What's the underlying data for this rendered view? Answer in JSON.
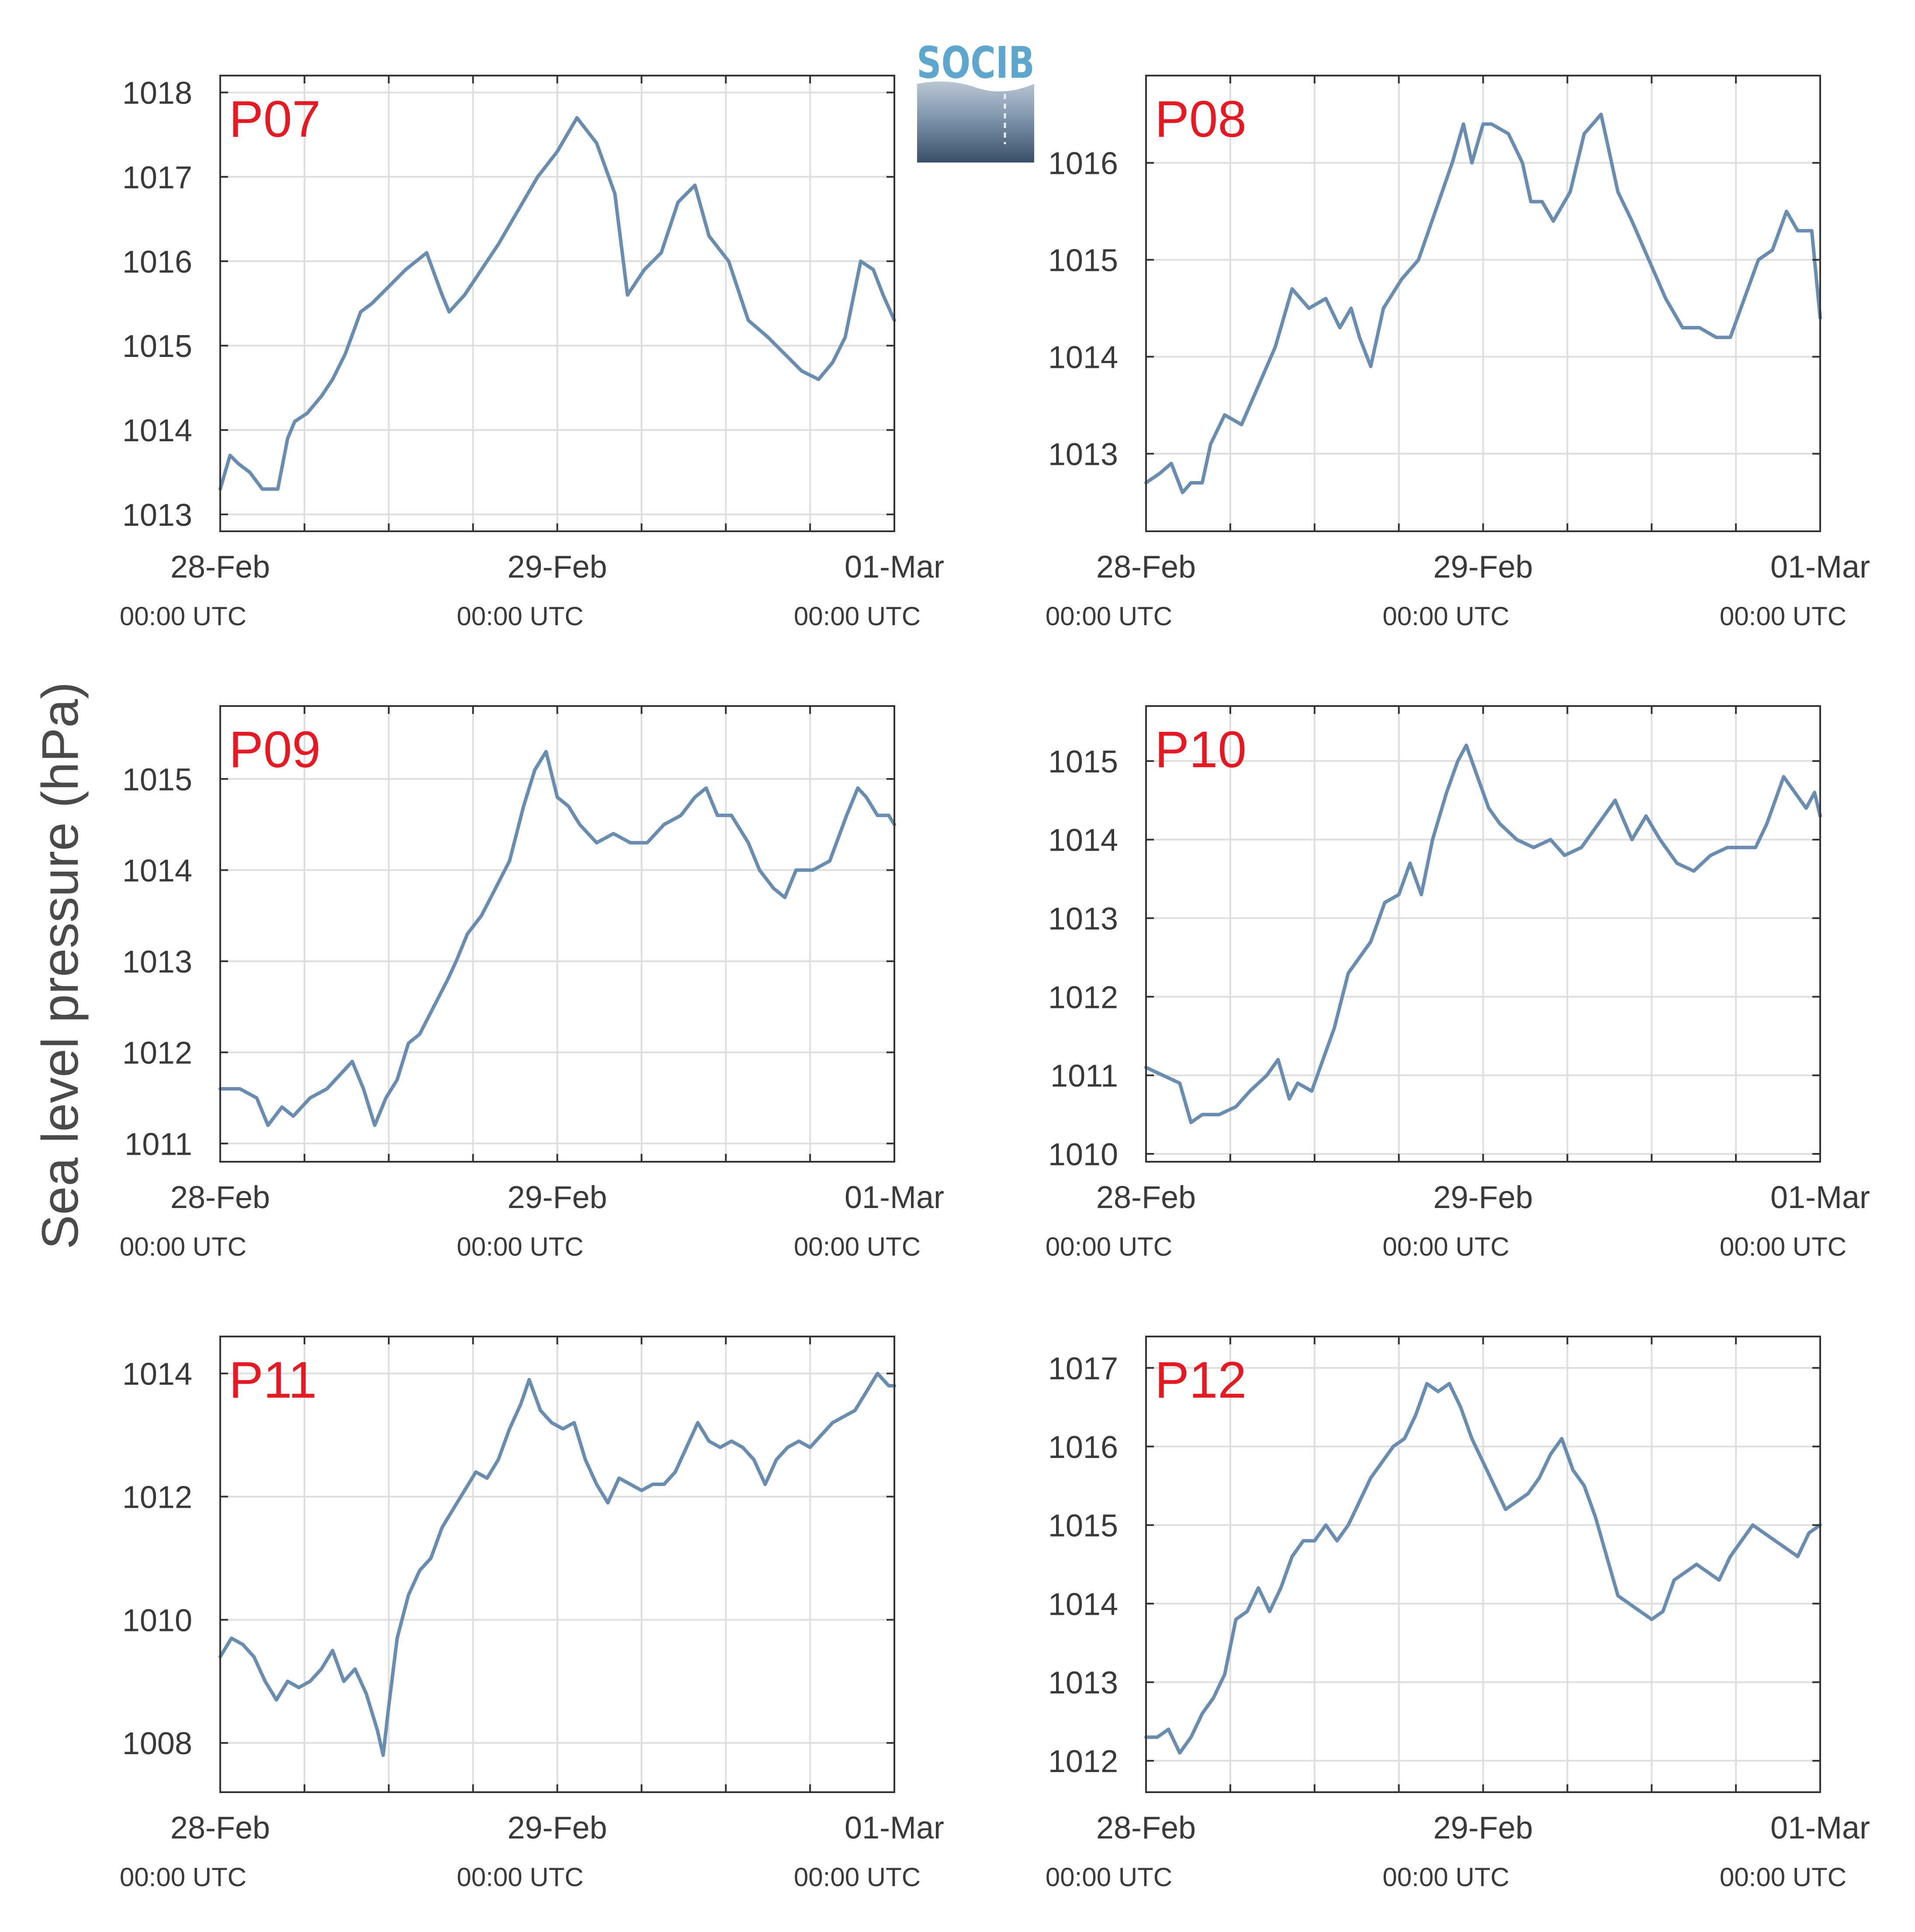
{
  "figure": {
    "ylabel": "Sea level pressure (hPa)",
    "logo_text": "SOCIB",
    "line_color": "#6a8caf",
    "label_color": "#e31a24"
  },
  "chart_data": [
    {
      "type": "line",
      "title": "P07",
      "xticks": [
        {
          "date": "28-Feb",
          "time": "00:00 UTC"
        },
        {
          "date": "29-Feb",
          "time": "00:00 UTC"
        },
        {
          "date": "01-Mar",
          "time": "00:00 UTC"
        }
      ],
      "xlim_hours": [
        0,
        48
      ],
      "ylim": [
        1012.8,
        1018.2
      ],
      "yticks": [
        1013,
        1014,
        1015,
        1016,
        1017,
        1018
      ],
      "grid": true,
      "series": [
        {
          "x_hours": [
            0,
            0.7,
            1.3,
            2.1,
            3.0,
            4.1,
            4.8,
            5.3,
            6.2,
            7.2,
            8.0,
            8.9,
            10.0,
            10.8,
            12.0,
            13.2,
            14.7,
            15.8,
            16.3,
            17.4,
            18.6,
            19.8,
            21.2,
            22.6,
            24.0,
            25.4,
            26.8,
            28.1,
            29.0,
            30.2,
            31.4,
            32.6,
            33.8,
            34.8,
            36.2,
            37.6,
            39.0,
            40.2,
            41.4,
            42.6,
            43.6,
            44.5,
            45.6,
            46.5,
            47.2,
            48
          ],
          "values": [
            1013.3,
            1013.7,
            1013.6,
            1013.5,
            1013.3,
            1013.3,
            1013.9,
            1014.1,
            1014.2,
            1014.4,
            1014.6,
            1014.9,
            1015.4,
            1015.5,
            1015.7,
            1015.9,
            1016.1,
            1015.6,
            1015.4,
            1015.6,
            1015.9,
            1016.2,
            1016.6,
            1017.0,
            1017.3,
            1017.7,
            1017.4,
            1016.8,
            1015.6,
            1015.9,
            1016.1,
            1016.7,
            1016.9,
            1016.3,
            1016.0,
            1015.3,
            1015.1,
            1014.9,
            1014.7,
            1014.6,
            1014.8,
            1015.1,
            1016.0,
            1015.9,
            1015.6,
            1015.3
          ]
        }
      ]
    },
    {
      "type": "line",
      "title": "P08",
      "xticks": [
        {
          "date": "28-Feb",
          "time": "00:00 UTC"
        },
        {
          "date": "29-Feb",
          "time": "00:00 UTC"
        },
        {
          "date": "01-Mar",
          "time": "00:00 UTC"
        }
      ],
      "xlim_hours": [
        0,
        48
      ],
      "ylim": [
        1012.2,
        1016.9
      ],
      "yticks": [
        1013,
        1014,
        1015,
        1016
      ],
      "grid": true,
      "series": [
        {
          "x_hours": [
            0,
            1.0,
            1.8,
            2.6,
            3.2,
            4.0,
            4.6,
            5.6,
            6.8,
            8.0,
            9.2,
            10.4,
            11.6,
            12.8,
            13.8,
            14.6,
            15.2,
            16.0,
            16.9,
            18.2,
            19.4,
            20.6,
            21.8,
            22.6,
            23.2,
            24.0,
            24.6,
            25.8,
            26.8,
            27.4,
            28.2,
            29.0,
            30.2,
            31.2,
            32.4,
            33.6,
            34.6,
            35.8,
            37.0,
            38.2,
            39.4,
            40.6,
            41.6,
            42.6,
            43.6,
            44.6,
            45.6,
            46.4,
            47.4,
            48
          ],
          "values": [
            1012.7,
            1012.8,
            1012.9,
            1012.6,
            1012.7,
            1012.7,
            1013.1,
            1013.4,
            1013.3,
            1013.7,
            1014.1,
            1014.7,
            1014.5,
            1014.6,
            1014.3,
            1014.5,
            1014.2,
            1013.9,
            1014.5,
            1014.8,
            1015.0,
            1015.5,
            1016.0,
            1016.4,
            1016.0,
            1016.4,
            1016.4,
            1016.3,
            1016.0,
            1015.6,
            1015.6,
            1015.4,
            1015.7,
            1016.3,
            1016.5,
            1015.7,
            1015.4,
            1015.0,
            1014.6,
            1014.3,
            1014.3,
            1014.2,
            1014.2,
            1014.6,
            1015.0,
            1015.1,
            1015.5,
            1015.3,
            1015.3,
            1014.4
          ]
        }
      ]
    },
    {
      "type": "line",
      "title": "P09",
      "xticks": [
        {
          "date": "28-Feb",
          "time": "00:00 UTC"
        },
        {
          "date": "29-Feb",
          "time": "00:00 UTC"
        },
        {
          "date": "01-Mar",
          "time": "00:00 UTC"
        }
      ],
      "xlim_hours": [
        0,
        48
      ],
      "ylim": [
        1010.8,
        1015.8
      ],
      "yticks": [
        1011,
        1012,
        1013,
        1014,
        1015
      ],
      "grid": true,
      "series": [
        {
          "x_hours": [
            0,
            1.4,
            2.6,
            3.4,
            4.4,
            5.2,
            6.4,
            7.6,
            8.8,
            9.4,
            10.2,
            11.0,
            11.8,
            12.6,
            13.4,
            14.2,
            15.2,
            16.2,
            16.8,
            17.6,
            18.6,
            19.6,
            20.6,
            21.6,
            22.4,
            23.2,
            24.0,
            24.8,
            25.6,
            26.8,
            28.0,
            29.2,
            30.4,
            31.6,
            32.8,
            33.8,
            34.6,
            35.4,
            36.4,
            37.6,
            38.4,
            39.4,
            40.2,
            41.0,
            42.2,
            43.4,
            44.6,
            45.4,
            46.0,
            46.8,
            47.6,
            48
          ],
          "values": [
            1011.6,
            1011.6,
            1011.5,
            1011.2,
            1011.4,
            1011.3,
            1011.5,
            1011.6,
            1011.8,
            1011.9,
            1011.6,
            1011.2,
            1011.5,
            1011.7,
            1012.1,
            1012.2,
            1012.5,
            1012.8,
            1013.0,
            1013.3,
            1013.5,
            1013.8,
            1014.1,
            1014.7,
            1015.1,
            1015.3,
            1014.8,
            1014.7,
            1014.5,
            1014.3,
            1014.4,
            1014.3,
            1014.3,
            1014.5,
            1014.6,
            1014.8,
            1014.9,
            1014.6,
            1014.6,
            1014.3,
            1014.0,
            1013.8,
            1013.7,
            1014.0,
            1014.0,
            1014.1,
            1014.6,
            1014.9,
            1014.8,
            1014.6,
            1014.6,
            1014.5
          ]
        }
      ]
    },
    {
      "type": "line",
      "title": "P10",
      "xticks": [
        {
          "date": "28-Feb",
          "time": "00:00 UTC"
        },
        {
          "date": "29-Feb",
          "time": "00:00 UTC"
        },
        {
          "date": "01-Mar",
          "time": "00:00 UTC"
        }
      ],
      "xlim_hours": [
        0,
        48
      ],
      "ylim": [
        1009.9,
        1015.7
      ],
      "yticks": [
        1010,
        1011,
        1012,
        1013,
        1014,
        1015
      ],
      "grid": true,
      "series": [
        {
          "x_hours": [
            0,
            1.2,
            2.4,
            3.2,
            4.0,
            5.2,
            6.4,
            7.4,
            8.6,
            9.4,
            10.2,
            10.8,
            11.8,
            12.6,
            13.4,
            14.4,
            15.2,
            16.0,
            17.0,
            18.0,
            18.8,
            19.6,
            20.4,
            21.4,
            22.2,
            22.8,
            23.6,
            24.4,
            25.2,
            26.4,
            27.6,
            28.8,
            29.8,
            31.0,
            32.2,
            33.4,
            34.6,
            35.6,
            36.6,
            37.8,
            39.0,
            40.2,
            41.4,
            42.6,
            43.4,
            44.2,
            44.8,
            45.4,
            46.2,
            47.0,
            47.6,
            48
          ],
          "values": [
            1011.1,
            1011.0,
            1010.9,
            1010.4,
            1010.5,
            1010.5,
            1010.6,
            1010.8,
            1011.0,
            1011.2,
            1010.7,
            1010.9,
            1010.8,
            1011.2,
            1011.6,
            1012.3,
            1012.5,
            1012.7,
            1013.2,
            1013.3,
            1013.7,
            1013.3,
            1014.0,
            1014.6,
            1015.0,
            1015.2,
            1014.8,
            1014.4,
            1014.2,
            1014.0,
            1013.9,
            1014.0,
            1013.8,
            1013.9,
            1014.2,
            1014.5,
            1014.0,
            1014.3,
            1014.0,
            1013.7,
            1013.6,
            1013.8,
            1013.9,
            1013.9,
            1013.9,
            1014.2,
            1014.5,
            1014.8,
            1014.6,
            1014.4,
            1014.6,
            1014.3
          ]
        }
      ]
    },
    {
      "type": "line",
      "title": "P11",
      "xticks": [
        {
          "date": "28-Feb",
          "time": "00:00 UTC"
        },
        {
          "date": "29-Feb",
          "time": "00:00 UTC"
        },
        {
          "date": "01-Mar",
          "time": "00:00 UTC"
        }
      ],
      "xlim_hours": [
        0,
        48
      ],
      "ylim": [
        1007.2,
        1014.6
      ],
      "yticks": [
        1008,
        1010,
        1012,
        1014
      ],
      "grid": true,
      "series": [
        {
          "x_hours": [
            0,
            0.8,
            1.6,
            2.4,
            3.2,
            4.0,
            4.8,
            5.6,
            6.4,
            7.2,
            8.0,
            8.8,
            9.6,
            10.4,
            11.2,
            11.6,
            12.0,
            12.6,
            13.4,
            14.2,
            15.0,
            15.8,
            16.6,
            17.4,
            18.2,
            19.0,
            19.8,
            20.6,
            21.4,
            22.0,
            22.8,
            23.6,
            24.4,
            25.2,
            26.0,
            26.8,
            27.6,
            28.4,
            29.2,
            30.0,
            30.8,
            31.6,
            32.4,
            33.2,
            34.0,
            34.8,
            35.6,
            36.4,
            37.2,
            38.0,
            38.8,
            39.6,
            40.4,
            41.2,
            42.0,
            42.8,
            43.6,
            44.4,
            45.2,
            46.0,
            46.8,
            47.6,
            48
          ],
          "values": [
            1009.4,
            1009.7,
            1009.6,
            1009.4,
            1009.0,
            1008.7,
            1009.0,
            1008.9,
            1009.0,
            1009.2,
            1009.5,
            1009.0,
            1009.2,
            1008.8,
            1008.2,
            1007.8,
            1008.6,
            1009.7,
            1010.4,
            1010.8,
            1011.0,
            1011.5,
            1011.8,
            1012.1,
            1012.4,
            1012.3,
            1012.6,
            1013.1,
            1013.5,
            1013.9,
            1013.4,
            1013.2,
            1013.1,
            1013.2,
            1012.6,
            1012.2,
            1011.9,
            1012.3,
            1012.2,
            1012.1,
            1012.2,
            1012.2,
            1012.4,
            1012.8,
            1013.2,
            1012.9,
            1012.8,
            1012.9,
            1012.8,
            1012.6,
            1012.2,
            1012.6,
            1012.8,
            1012.9,
            1012.8,
            1013.0,
            1013.2,
            1013.3,
            1013.4,
            1013.7,
            1014.0,
            1013.8,
            1013.8
          ]
        }
      ]
    },
    {
      "type": "line",
      "title": "P12",
      "xticks": [
        {
          "date": "28-Feb",
          "time": "00:00 UTC"
        },
        {
          "date": "29-Feb",
          "time": "00:00 UTC"
        },
        {
          "date": "01-Mar",
          "time": "00:00 UTC"
        }
      ],
      "xlim_hours": [
        0,
        48
      ],
      "ylim": [
        1011.6,
        1017.4
      ],
      "yticks": [
        1012,
        1013,
        1014,
        1015,
        1016,
        1017
      ],
      "grid": true,
      "series": [
        {
          "x_hours": [
            0,
            0.8,
            1.6,
            2.4,
            3.2,
            4.0,
            4.8,
            5.6,
            6.4,
            7.2,
            8.0,
            8.8,
            9.6,
            10.4,
            11.2,
            12.0,
            12.8,
            13.6,
            14.4,
            15.2,
            16.0,
            16.8,
            17.6,
            18.4,
            19.2,
            20.0,
            20.8,
            21.6,
            22.4,
            23.2,
            24.0,
            24.8,
            25.6,
            26.4,
            27.2,
            28.0,
            28.8,
            29.6,
            30.4,
            31.2,
            32.0,
            32.8,
            33.6,
            34.4,
            35.2,
            36.0,
            36.8,
            37.6,
            38.4,
            39.2,
            40.0,
            40.8,
            41.6,
            42.4,
            43.2,
            44.0,
            44.8,
            45.6,
            46.4,
            47.2,
            48
          ],
          "values": [
            1012.3,
            1012.3,
            1012.4,
            1012.1,
            1012.3,
            1012.6,
            1012.8,
            1013.1,
            1013.8,
            1013.9,
            1014.2,
            1013.9,
            1014.2,
            1014.6,
            1014.8,
            1014.8,
            1015.0,
            1014.8,
            1015.0,
            1015.3,
            1015.6,
            1015.8,
            1016.0,
            1016.1,
            1016.4,
            1016.8,
            1016.7,
            1016.8,
            1016.5,
            1016.1,
            1015.8,
            1015.5,
            1015.2,
            1015.3,
            1015.4,
            1015.6,
            1015.9,
            1016.1,
            1015.7,
            1015.5,
            1015.1,
            1014.6,
            1014.1,
            1014.0,
            1013.9,
            1013.8,
            1013.9,
            1014.3,
            1014.4,
            1014.5,
            1014.4,
            1014.3,
            1014.6,
            1014.8,
            1015.0,
            1014.9,
            1014.8,
            1014.7,
            1014.6,
            1014.9,
            1015.0
          ]
        }
      ]
    }
  ]
}
